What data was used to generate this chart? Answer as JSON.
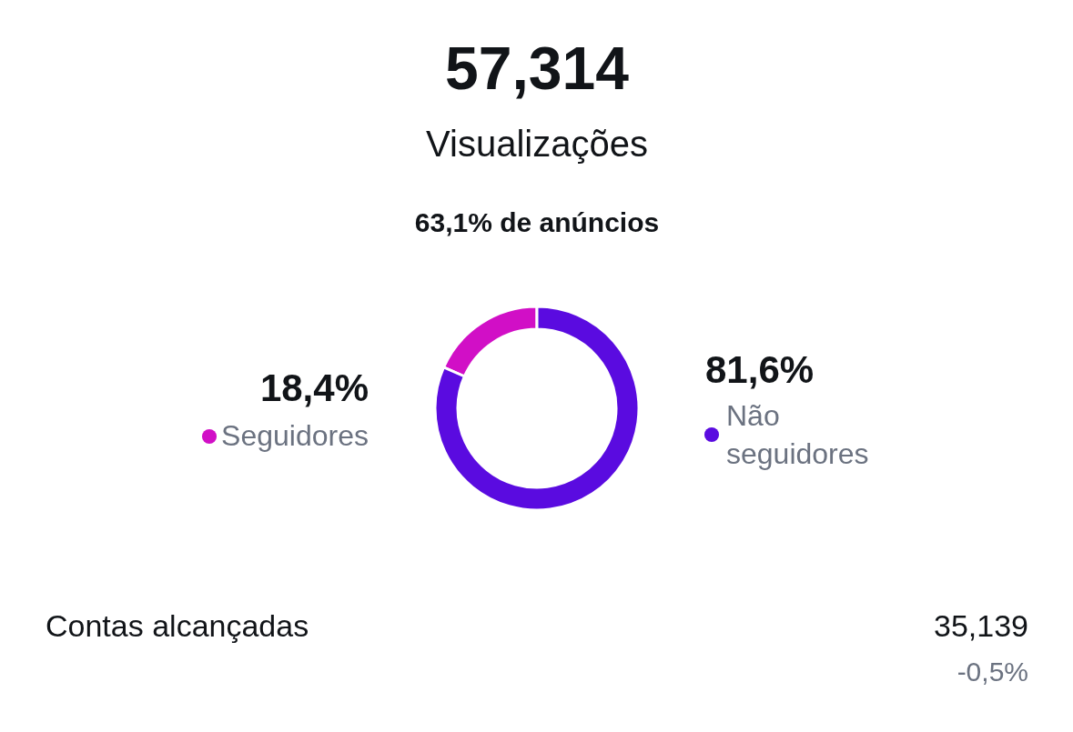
{
  "chart_data": {
    "type": "donut",
    "title": "57,314",
    "subtitle": "Visualizações",
    "categories": [
      "Seguidores",
      "Não seguidores"
    ],
    "values": [
      18.4,
      81.6
    ],
    "colors": [
      "#d10fc6",
      "#5a0be0"
    ],
    "value_labels": [
      "18,4%",
      "81,6%"
    ],
    "legend": "left",
    "annotations": [
      "63,1% de anúncios",
      "Contas alcançadas",
      "35,139",
      "-0,5%"
    ]
  }
}
